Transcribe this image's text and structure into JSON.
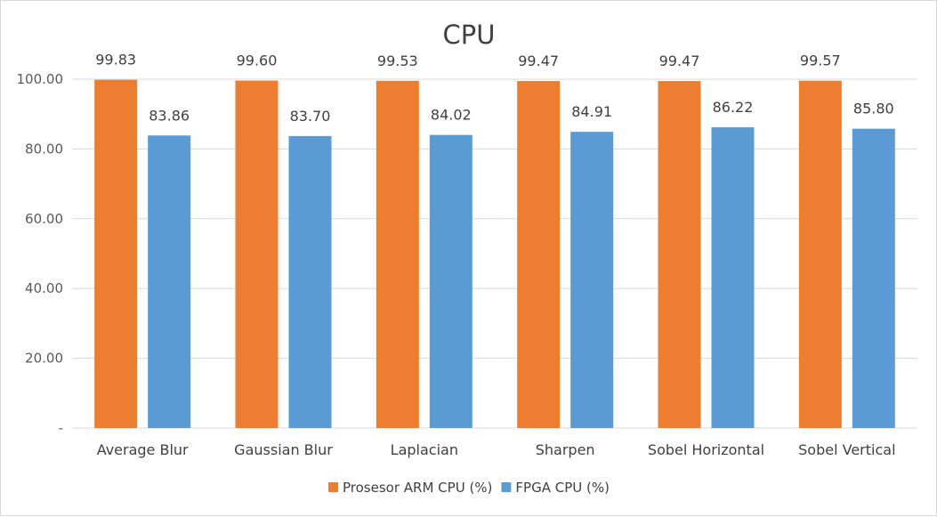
{
  "chart_data": {
    "type": "bar",
    "title": "CPU",
    "xlabel": "",
    "ylabel": "",
    "ylim": [
      0,
      100
    ],
    "y_ticks": [
      0,
      20,
      40,
      60,
      80,
      100
    ],
    "y_tick_labels": [
      "-",
      "20.00",
      "40.00",
      "60.00",
      "80.00",
      "100.00"
    ],
    "grid": true,
    "legend_position": "bottom",
    "categories": [
      "Average Blur",
      "Gaussian Blur",
      "Laplacian",
      "Sharpen",
      "Sobel Horizontal",
      "Sobel Vertical"
    ],
    "series": [
      {
        "name": "Prosesor ARM CPU (%)",
        "color": "#ED7D31",
        "values": [
          99.83,
          99.6,
          99.53,
          99.47,
          99.47,
          99.57
        ],
        "labels": [
          "99.83",
          "99.60",
          "99.53",
          "99.47",
          "99.47",
          "99.57"
        ]
      },
      {
        "name": "FPGA CPU (%)",
        "color": "#5B9BD5",
        "values": [
          83.86,
          83.7,
          84.02,
          84.91,
          86.22,
          85.8
        ],
        "labels": [
          "83.86",
          "83.70",
          "84.02",
          "84.91",
          "86.22",
          "85.80"
        ]
      }
    ]
  }
}
